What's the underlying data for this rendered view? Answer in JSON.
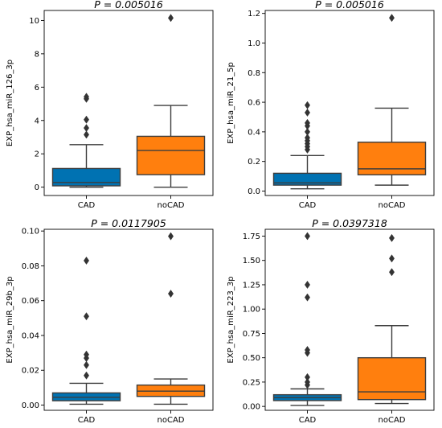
{
  "chart_data": [
    {
      "type": "box",
      "title": "P = 0.005016",
      "ylabel": "EXP_hsa_miR_126_3p",
      "categories": [
        "CAD",
        "noCAD"
      ],
      "ylim": [
        -0.5,
        10.6
      ],
      "yticks": [
        0,
        2,
        4,
        6,
        8,
        10
      ],
      "tick_labels": [
        "0",
        "2",
        "4",
        "6",
        "8",
        "10"
      ],
      "boxes": [
        {
          "category": "CAD",
          "whisker_low": 0.0,
          "q1": 0.08,
          "median": 0.28,
          "q3": 1.12,
          "whisker_high": 2.55,
          "outliers": [
            3.15,
            3.55,
            4.05,
            5.3,
            5.42
          ],
          "color": "#0072b2"
        },
        {
          "category": "noCAD",
          "whisker_low": 0.0,
          "q1": 0.75,
          "median": 2.2,
          "q3": 3.05,
          "whisker_high": 4.9,
          "outliers": [
            10.15
          ],
          "color": "#ff7f0e"
        }
      ]
    },
    {
      "type": "box",
      "title": "P = 0.005016",
      "ylabel": "EXP_hsa_miR_21_5p",
      "categories": [
        "CAD",
        "noCAD"
      ],
      "ylim": [
        -0.03,
        1.22
      ],
      "yticks": [
        0.0,
        0.2,
        0.4,
        0.6,
        0.8,
        1.0,
        1.2
      ],
      "tick_labels": [
        "0.0",
        "0.2",
        "0.4",
        "0.6",
        "0.8",
        "1.0",
        "1.2"
      ],
      "boxes": [
        {
          "category": "CAD",
          "whisker_low": 0.015,
          "q1": 0.04,
          "median": 0.055,
          "q3": 0.12,
          "whisker_high": 0.24,
          "outliers": [
            0.28,
            0.3,
            0.32,
            0.34,
            0.36,
            0.4,
            0.44,
            0.46,
            0.53,
            0.58
          ],
          "color": "#0072b2"
        },
        {
          "category": "noCAD",
          "whisker_low": 0.04,
          "q1": 0.11,
          "median": 0.15,
          "q3": 0.33,
          "whisker_high": 0.56,
          "outliers": [
            1.17
          ],
          "color": "#ff7f0e"
        }
      ]
    },
    {
      "type": "box",
      "title": "P = 0.0117905",
      "ylabel": "EXP_hsa_miR_29b_3p",
      "categories": [
        "CAD",
        "noCAD"
      ],
      "ylim": [
        -0.003,
        0.101
      ],
      "yticks": [
        0.0,
        0.02,
        0.04,
        0.06,
        0.08,
        0.1
      ],
      "tick_labels": [
        "0.00",
        "0.02",
        "0.04",
        "0.06",
        "0.08",
        "0.10"
      ],
      "boxes": [
        {
          "category": "CAD",
          "whisker_low": 0.0005,
          "q1": 0.0025,
          "median": 0.0045,
          "q3": 0.007,
          "whisker_high": 0.0125,
          "outliers": [
            0.017,
            0.023,
            0.027,
            0.029,
            0.051,
            0.083
          ],
          "color": "#0072b2"
        },
        {
          "category": "noCAD",
          "whisker_low": 0.0005,
          "q1": 0.005,
          "median": 0.008,
          "q3": 0.0115,
          "whisker_high": 0.015,
          "outliers": [
            0.064,
            0.097
          ],
          "color": "#ff7f0e"
        }
      ]
    },
    {
      "type": "box",
      "title": "P = 0.0397318",
      "ylabel": "EXP_hsa_miR_223_3p",
      "categories": [
        "CAD",
        "noCAD"
      ],
      "ylim": [
        -0.04,
        1.82
      ],
      "yticks": [
        0.0,
        0.25,
        0.5,
        0.75,
        1.0,
        1.25,
        1.5,
        1.75
      ],
      "tick_labels": [
        "0.00",
        "0.25",
        "0.50",
        "0.75",
        "1.00",
        "1.25",
        "1.50",
        "1.75"
      ],
      "boxes": [
        {
          "category": "CAD",
          "whisker_low": 0.01,
          "q1": 0.06,
          "median": 0.09,
          "q3": 0.12,
          "whisker_high": 0.18,
          "outliers": [
            0.22,
            0.25,
            0.3,
            0.55,
            0.58,
            1.12,
            1.25,
            1.75
          ],
          "color": "#0072b2"
        },
        {
          "category": "noCAD",
          "whisker_low": 0.03,
          "q1": 0.07,
          "median": 0.15,
          "q3": 0.5,
          "whisker_high": 0.83,
          "outliers": [
            1.38,
            1.52,
            1.73
          ],
          "color": "#ff7f0e"
        }
      ]
    }
  ]
}
